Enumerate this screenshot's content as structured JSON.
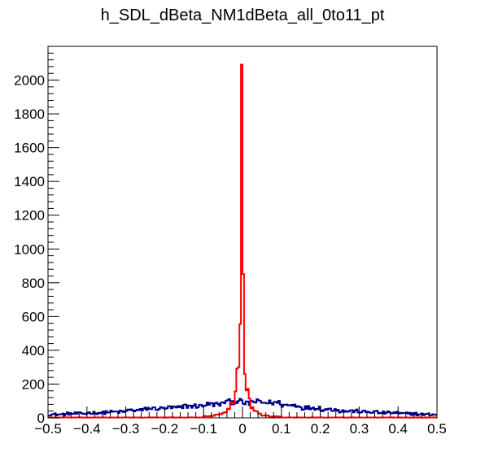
{
  "chart_data": {
    "type": "histogram",
    "title": "h_SDL_dBeta_NM1dBeta_all_0to11_pt",
    "xlabel": "",
    "ylabel": "",
    "xlim": [
      -0.5,
      0.5
    ],
    "ylim": [
      0,
      2200
    ],
    "x_ticks": [
      -0.5,
      -0.4,
      -0.3,
      -0.2,
      -0.1,
      0,
      0.1,
      0.2,
      0.3,
      0.4,
      0.5
    ],
    "x_tick_labels": [
      "−0.5",
      "−0.4",
      "−0.3",
      "−0.2",
      "−0.1",
      "0",
      "0.1",
      "0.2",
      "0.3",
      "0.4",
      "0.5"
    ],
    "y_ticks": [
      0,
      200,
      400,
      600,
      800,
      1000,
      1200,
      1400,
      1600,
      1800,
      2000
    ],
    "y_tick_labels": [
      "0",
      "200",
      "400",
      "600",
      "800",
      "1000",
      "1200",
      "1400",
      "1600",
      "1800",
      "2000"
    ],
    "grid": false,
    "legend": "none",
    "bin_width": 0.004,
    "series": [
      {
        "color": "#00008b",
        "bin_edges": [
          -0.5,
          -0.45,
          -0.4,
          -0.35,
          -0.3,
          -0.25,
          -0.2,
          -0.15,
          -0.1,
          -0.05,
          -0.02,
          -0.005,
          0.005,
          0.02,
          0.05,
          0.1,
          0.15,
          0.2,
          0.25,
          0.3,
          0.35,
          0.4,
          0.45,
          0.5
        ],
        "values": [
          20,
          25,
          30,
          35,
          45,
          55,
          60,
          70,
          80,
          95,
          100,
          90,
          85,
          95,
          90,
          75,
          60,
          50,
          40,
          35,
          30,
          25,
          20
        ]
      },
      {
        "color": "#ff0000",
        "bin_edges": [
          -0.5,
          -0.1,
          -0.07,
          -0.05,
          -0.04,
          -0.03,
          -0.02,
          -0.015,
          -0.01,
          -0.006,
          -0.004,
          -0.002,
          0,
          0.002,
          0.004,
          0.006,
          0.01,
          0.015,
          0.02,
          0.03,
          0.04,
          0.05,
          0.07,
          0.1,
          0.5
        ],
        "values": [
          2,
          10,
          20,
          30,
          50,
          90,
          150,
          300,
          550,
          1300,
          2090,
          2090,
          1650,
          850,
          420,
          260,
          170,
          110,
          60,
          40,
          25,
          15,
          8,
          2
        ]
      }
    ]
  }
}
